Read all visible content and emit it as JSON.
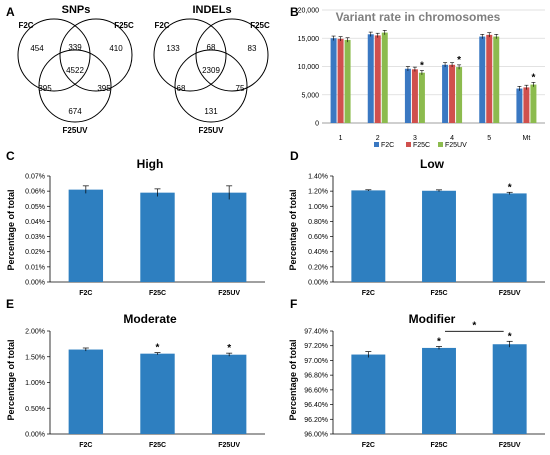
{
  "colors": {
    "bar": "#2e7fc0",
    "f2c": "#3a78c2",
    "f25c": "#d0504d",
    "f25uv": "#8cbb4e",
    "grid": "#d9d9d9",
    "circle": "#000000"
  },
  "panels": {
    "A": {
      "letter": "A"
    },
    "B": {
      "letter": "B"
    },
    "C": {
      "letter": "C"
    },
    "D": {
      "letter": "D"
    },
    "E": {
      "letter": "E"
    },
    "F": {
      "letter": "F"
    }
  },
  "venn": [
    {
      "title": "SNPs",
      "sets": [
        "F2C",
        "F25C",
        "F25UV"
      ],
      "regions": {
        "a_only": "454",
        "b_only": "410",
        "c_only": "674",
        "ab": "339",
        "ac": "395",
        "bc": "395",
        "abc": "4522"
      }
    },
    {
      "title": "INDELs",
      "sets": [
        "F2C",
        "F25C",
        "F25UV"
      ],
      "regions": {
        "a_only": "133",
        "b_only": "83",
        "c_only": "131",
        "ab": "68",
        "ac": "68",
        "bc": "75",
        "abc": "2309"
      }
    }
  ],
  "chart_data": [
    {
      "type": "bar",
      "panel": "B",
      "title": "Variant rate in chromosomes",
      "xlabel": "",
      "ylabel": "",
      "categories": [
        "1",
        "2",
        "3",
        "4",
        "5",
        "Mt"
      ],
      "series": [
        {
          "name": "F2C",
          "values": [
            15000,
            15700,
            9600,
            10300,
            15300,
            6100
          ]
        },
        {
          "name": "F25C",
          "values": [
            14900,
            15500,
            9500,
            10300,
            15600,
            6300
          ]
        },
        {
          "name": "F25UV",
          "values": [
            14700,
            16000,
            8900,
            9900,
            15300,
            6800
          ]
        }
      ],
      "ylim": [
        0,
        20000
      ],
      "yticks": [
        "0",
        "5,000",
        "10,000",
        "15,000",
        "20,000"
      ],
      "significance": [
        "",
        "",
        "*",
        "*",
        "",
        "*"
      ],
      "legend": "bottom",
      "grid": true
    },
    {
      "type": "bar",
      "panel": "C",
      "title": "High",
      "ylabel": "Percentage of total",
      "categories": [
        "F2C",
        "F25C",
        "F25UV"
      ],
      "values": [
        0.061,
        0.059,
        0.059
      ],
      "errors": [
        0.0025,
        0.0025,
        0.0045
      ],
      "ylim": [
        0,
        0.07
      ],
      "yticks": [
        "0.00%",
        "0.01%",
        "0.02%",
        "0.03%",
        "0.04%",
        "0.05%",
        "0.06%",
        "0.07%"
      ],
      "significance": [
        "",
        "",
        ""
      ]
    },
    {
      "type": "bar",
      "panel": "D",
      "title": "Low",
      "ylabel": "Percentage of total",
      "categories": [
        "F2C",
        "F25C",
        "F25UV"
      ],
      "values": [
        1.21,
        1.205,
        1.17
      ],
      "errors": [
        0.008,
        0.012,
        0.015
      ],
      "ylim": [
        0,
        1.4
      ],
      "yticks": [
        "0.00%",
        "0.20%",
        "0.40%",
        "0.60%",
        "0.80%",
        "1.00%",
        "1.20%",
        "1.40%"
      ],
      "significance": [
        "",
        "",
        "*"
      ]
    },
    {
      "type": "bar",
      "panel": "E",
      "title": "Moderate",
      "ylabel": "Percentage of total",
      "categories": [
        "F2C",
        "F25C",
        "F25UV"
      ],
      "values": [
        1.64,
        1.56,
        1.54
      ],
      "errors": [
        0.03,
        0.02,
        0.03
      ],
      "ylim": [
        0,
        2.0
      ],
      "yticks": [
        "0.00%",
        "0.50%",
        "1.00%",
        "1.50%",
        "2.00%"
      ],
      "significance": [
        "",
        "*",
        "*"
      ]
    },
    {
      "type": "bar",
      "panel": "F",
      "title": "Modifier",
      "ylabel": "Percentage of total",
      "categories": [
        "F2C",
        "F25C",
        "F25UV"
      ],
      "values": [
        97.08,
        97.17,
        97.22
      ],
      "errors": [
        0.04,
        0.02,
        0.04
      ],
      "ylim": [
        96.0,
        97.4
      ],
      "yticks": [
        "96.00%",
        "96.20%",
        "96.40%",
        "96.60%",
        "96.80%",
        "97.00%",
        "97.20%",
        "97.40%"
      ],
      "significance": [
        "",
        "*",
        "*"
      ],
      "bracket": {
        "from": 1,
        "to": 2,
        "label": "*"
      }
    }
  ]
}
